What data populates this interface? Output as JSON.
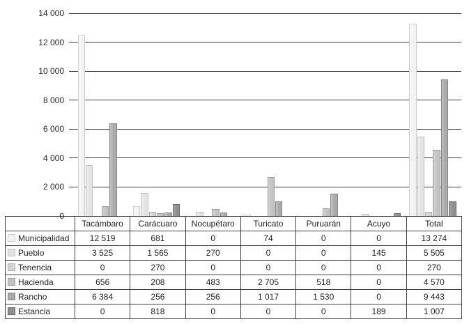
{
  "chart_data": {
    "type": "bar",
    "title": "",
    "xlabel": "",
    "ylabel": "",
    "categories": [
      "Tacámbaro",
      "Carácuaro",
      "Nocupétaro",
      "Turicato",
      "Puruarán",
      "Acuyo",
      "Total"
    ],
    "series": [
      {
        "name": "Municipalidad",
        "values": [
          12519,
          681,
          0,
          74,
          0,
          0,
          13274
        ],
        "display": [
          "12 519",
          "681",
          "0",
          "74",
          "0",
          "0",
          "13 274"
        ],
        "fill": "#f2f2f2",
        "fill_light": "#fafafa",
        "border": "#cfcfcf"
      },
      {
        "name": "Pueblo",
        "values": [
          3525,
          1565,
          270,
          0,
          0,
          145,
          5505
        ],
        "display": [
          "3 525",
          "1 565",
          "270",
          "0",
          "0",
          "145",
          "5 505"
        ],
        "fill": "#e3e3e3",
        "fill_light": "#f0f0f0",
        "border": "#bfbfbf"
      },
      {
        "name": "Tenencia",
        "values": [
          0,
          270,
          0,
          0,
          0,
          0,
          270
        ],
        "display": [
          "0",
          "270",
          "0",
          "0",
          "0",
          "0",
          "270"
        ],
        "fill": "#d4d4d4",
        "fill_light": "#e3e3e3",
        "border": "#adadad"
      },
      {
        "name": "Hacienda",
        "values": [
          656,
          208,
          483,
          2705,
          518,
          0,
          4570
        ],
        "display": [
          "656",
          "208",
          "483",
          "2 705",
          "518",
          "0",
          "4 570"
        ],
        "fill": "#c3c3c3",
        "fill_light": "#d5d5d5",
        "border": "#9a9a9a"
      },
      {
        "name": "Rancho",
        "values": [
          6384,
          256,
          256,
          1017,
          1530,
          0,
          9443
        ],
        "display": [
          "6 384",
          "256",
          "256",
          "1 017",
          "1 530",
          "0",
          "9 443"
        ],
        "fill": "#aaaaaa",
        "fill_light": "#c2c2c2",
        "border": "#858585"
      },
      {
        "name": "Estancia",
        "values": [
          0,
          818,
          0,
          0,
          0,
          189,
          1007
        ],
        "display": [
          "0",
          "818",
          "0",
          "0",
          "0",
          "189",
          "1 007"
        ],
        "fill": "#8f8f8f",
        "fill_light": "#a8a8a8",
        "border": "#6b6b6b"
      }
    ],
    "y_axis": {
      "min": 0,
      "max": 14000,
      "step": 2000,
      "tick_labels": [
        "0",
        "2 000",
        "4 000",
        "6 000",
        "8 000",
        "10 000",
        "12 000",
        "14 000"
      ]
    },
    "grid": true,
    "legend_position": "table-row-keys"
  }
}
